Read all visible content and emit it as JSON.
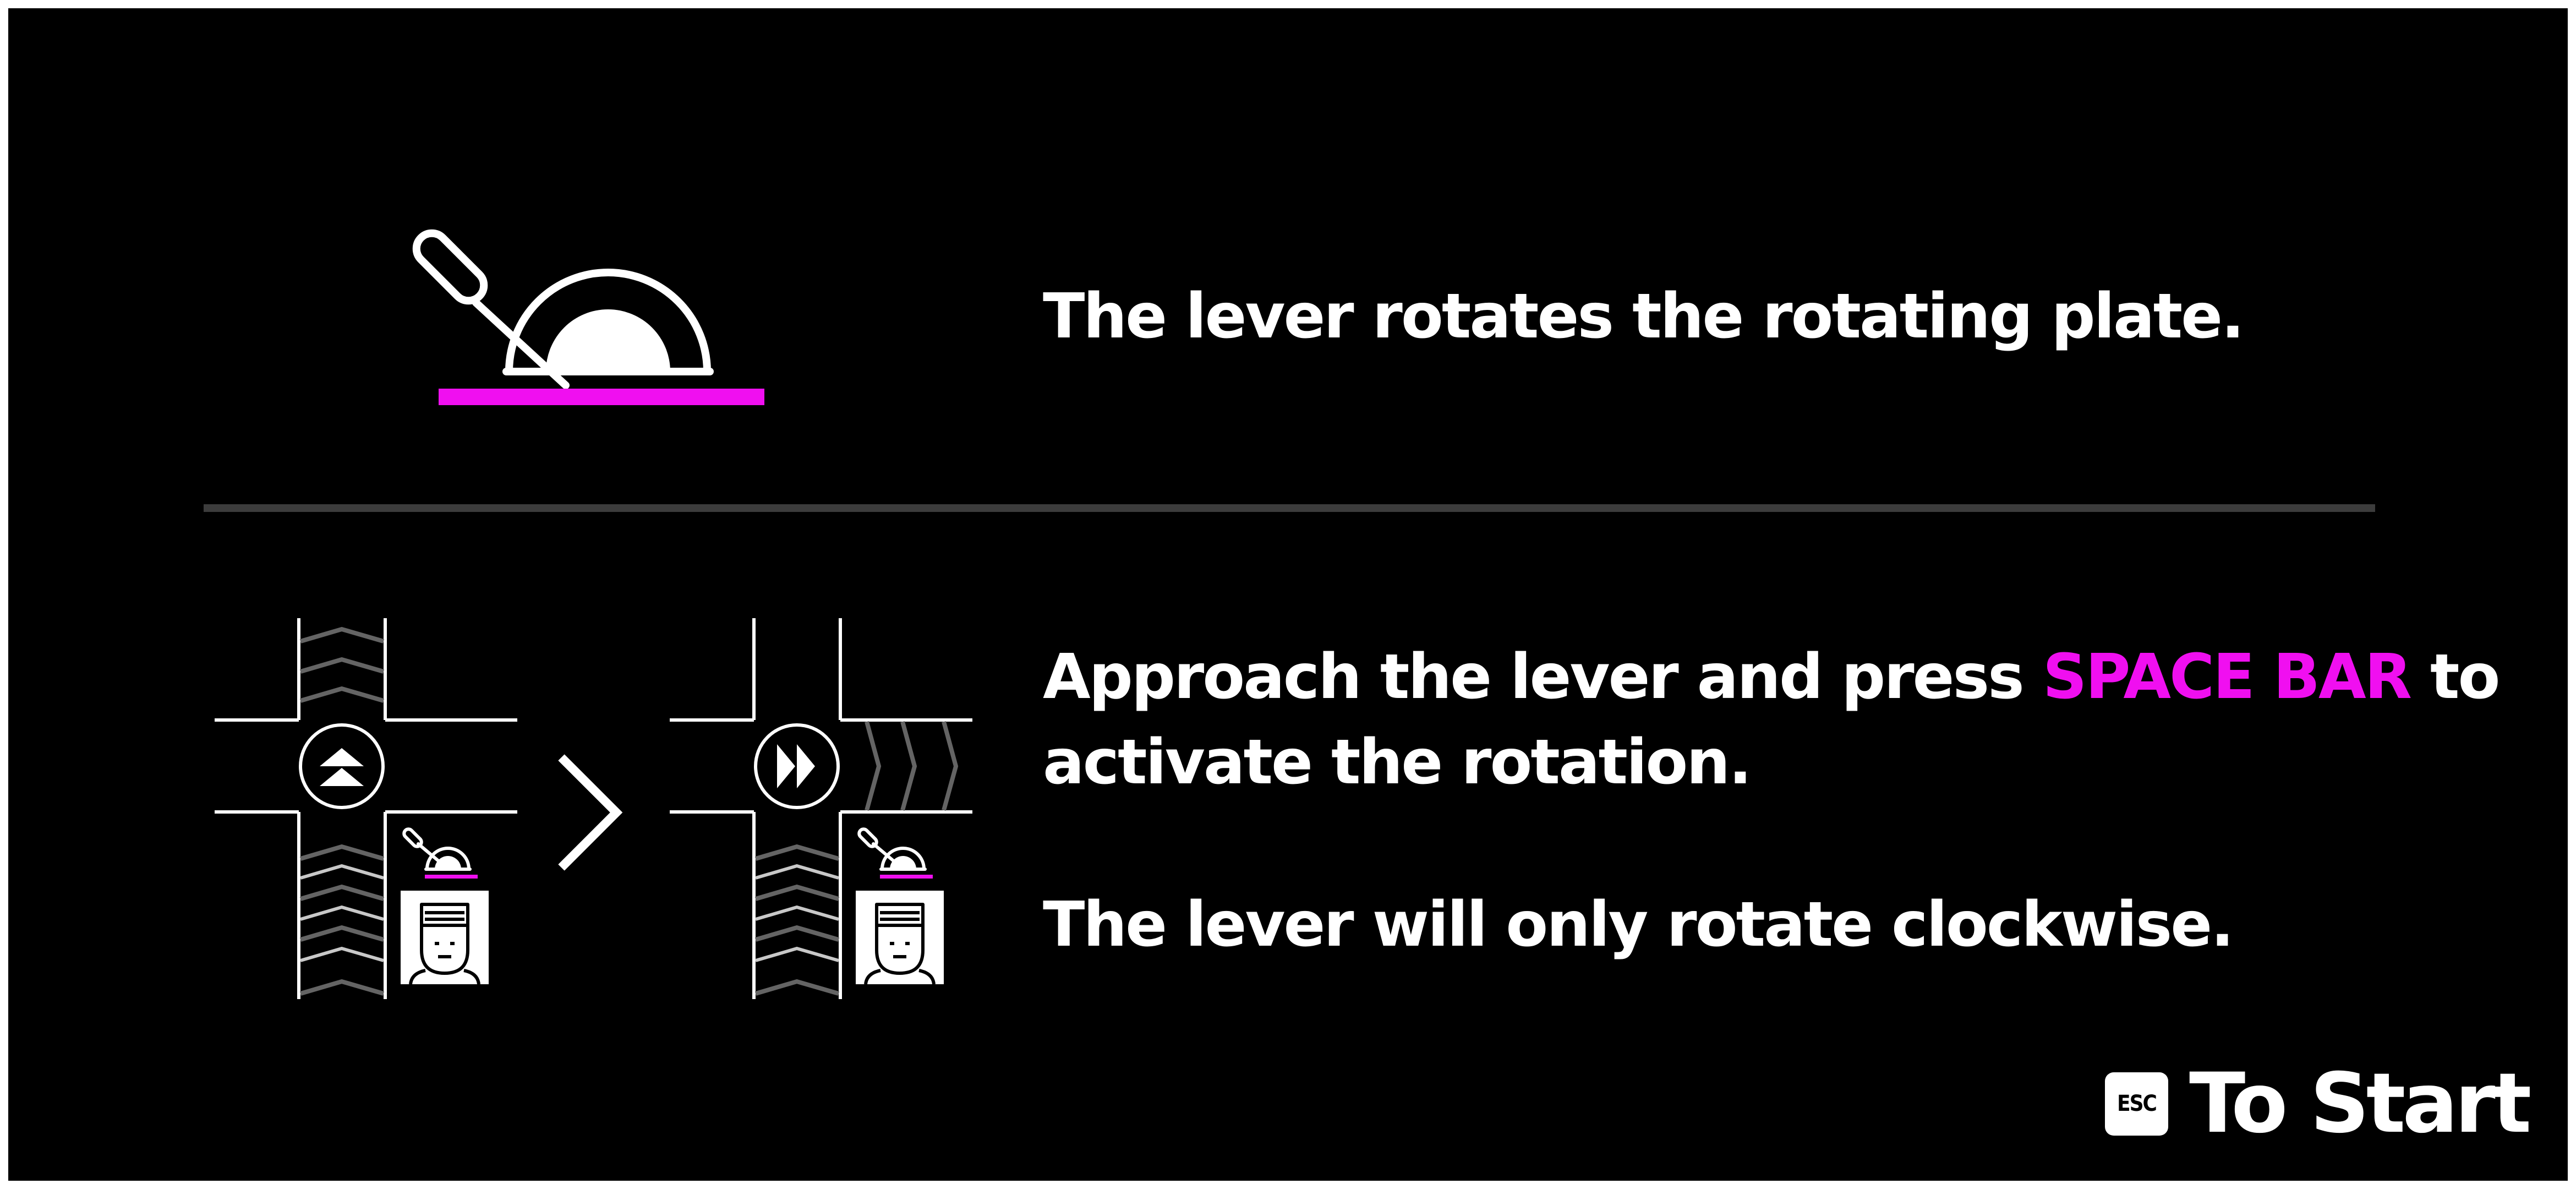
{
  "instructions": {
    "lever_caption": "The lever rotates the rotating plate.",
    "approach_prefix": "Approach the lever and press ",
    "key_name": "SPACE BAR",
    "approach_suffix": " to",
    "approach_line2": "activate the rotation.",
    "clockwise_note": "The lever will only rotate clockwise."
  },
  "footer": {
    "esc_key_label": "ESC",
    "to_start_label": "To Start"
  },
  "colors": {
    "background": "#000000",
    "text": "#ffffff",
    "accent": "#f00ff0",
    "divider": "#3c3c3c"
  },
  "icons": [
    "lever-icon",
    "rotating-plate-icon",
    "double-up-arrow-icon",
    "double-right-arrow-icon",
    "next-chevron-icon",
    "operator-face-icon"
  ]
}
